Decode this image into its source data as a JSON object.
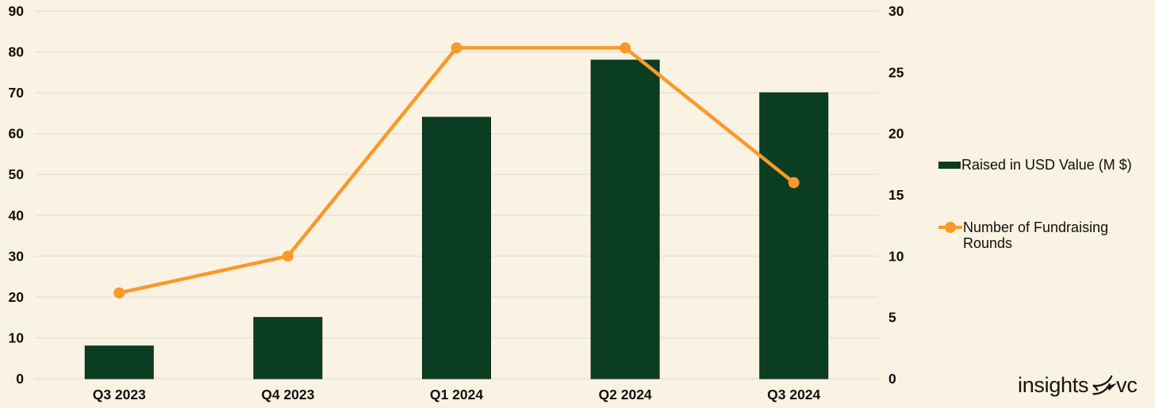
{
  "colors": {
    "background": "#faf2e2",
    "gridline": "#e5e2d9",
    "text": "#0f0f0f",
    "bar_green": "#0b3d23",
    "bar_edge": "#07301b",
    "line_orange": "#f8992b",
    "logo_text": "#151515"
  },
  "chart_data": {
    "type": "combo",
    "title": "",
    "categories": [
      "Q3 2023",
      "Q4 2023",
      "Q1 2024",
      "Q2 2024",
      "Q3 2024"
    ],
    "series": [
      {
        "name": "Raised in USD Value (M $)",
        "type": "bar",
        "axis": "left",
        "color": "#0b3d23",
        "values": [
          8,
          15,
          64,
          78,
          70
        ]
      },
      {
        "name": "Number of Fundraising Rounds",
        "type": "line",
        "axis": "right",
        "color": "#f8992b",
        "values": [
          7,
          10,
          27,
          27,
          16
        ]
      }
    ],
    "left_axis": {
      "min": 0,
      "max": 90,
      "ticks": [
        0,
        10,
        20,
        30,
        40,
        50,
        60,
        70,
        80,
        90
      ]
    },
    "right_axis": {
      "min": 0,
      "max": 30,
      "ticks": [
        0,
        5,
        10,
        15,
        20,
        25,
        30
      ]
    },
    "grid": true,
    "legend_position": "right"
  },
  "branding": {
    "logo_left": "insights",
    "logo_right": "vc",
    "logo_icon": "bird-icon"
  }
}
